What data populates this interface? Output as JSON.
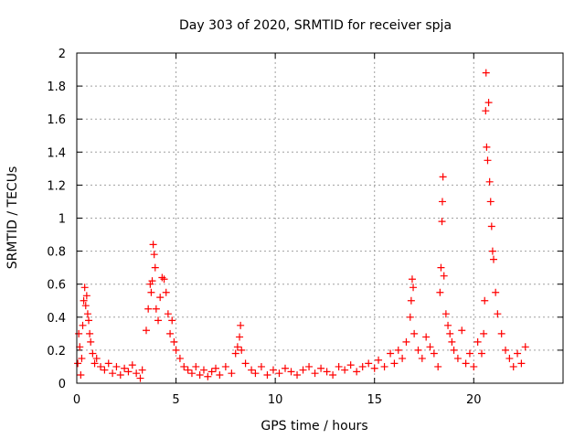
{
  "chart_data": {
    "type": "scatter",
    "title": "Day 303 of 2020, SRMTID for receiver spja",
    "xlabel": "GPS time / hours",
    "ylabel": "SRMTID / TECUs",
    "xlim": [
      0,
      24.5
    ],
    "ylim": [
      0,
      2
    ],
    "xticks": [
      0,
      5,
      10,
      15,
      20
    ],
    "xtick_labels": [
      "0",
      "5",
      "10",
      "15",
      "20"
    ],
    "yticks": [
      0,
      0.2,
      0.4,
      0.6,
      0.8,
      1,
      1.2,
      1.4,
      1.6,
      1.8,
      2
    ],
    "ytick_labels": [
      "0",
      "0.2",
      "0.4",
      "0.6",
      "0.8",
      "1",
      "1.2",
      "1.4",
      "1.6",
      "1.8",
      "2"
    ],
    "grid": true,
    "marker": "plus",
    "color": "#ff0000",
    "series": [
      {
        "name": "SRMTID",
        "points": [
          [
            0.05,
            0.12
          ],
          [
            0.1,
            0.3
          ],
          [
            0.15,
            0.22
          ],
          [
            0.2,
            0.05
          ],
          [
            0.25,
            0.15
          ],
          [
            0.3,
            0.35
          ],
          [
            0.35,
            0.5
          ],
          [
            0.4,
            0.58
          ],
          [
            0.45,
            0.47
          ],
          [
            0.5,
            0.53
          ],
          [
            0.55,
            0.42
          ],
          [
            0.6,
            0.38
          ],
          [
            0.65,
            0.3
          ],
          [
            0.7,
            0.25
          ],
          [
            0.8,
            0.18
          ],
          [
            0.9,
            0.12
          ],
          [
            1.0,
            0.15
          ],
          [
            1.2,
            0.1
          ],
          [
            1.4,
            0.08
          ],
          [
            1.6,
            0.12
          ],
          [
            1.8,
            0.06
          ],
          [
            2.0,
            0.1
          ],
          [
            2.2,
            0.05
          ],
          [
            2.4,
            0.09
          ],
          [
            2.6,
            0.07
          ],
          [
            2.8,
            0.11
          ],
          [
            3.0,
            0.06
          ],
          [
            3.2,
            0.03
          ],
          [
            3.3,
            0.08
          ],
          [
            3.5,
            0.32
          ],
          [
            3.6,
            0.45
          ],
          [
            3.7,
            0.6
          ],
          [
            3.75,
            0.55
          ],
          [
            3.8,
            0.62
          ],
          [
            3.85,
            0.84
          ],
          [
            3.9,
            0.78
          ],
          [
            3.95,
            0.7
          ],
          [
            4.0,
            0.45
          ],
          [
            4.1,
            0.38
          ],
          [
            4.2,
            0.52
          ],
          [
            4.3,
            0.64
          ],
          [
            4.4,
            0.63
          ],
          [
            4.5,
            0.55
          ],
          [
            4.6,
            0.42
          ],
          [
            4.7,
            0.3
          ],
          [
            4.8,
            0.38
          ],
          [
            4.9,
            0.25
          ],
          [
            5.0,
            0.2
          ],
          [
            5.2,
            0.15
          ],
          [
            5.4,
            0.1
          ],
          [
            5.6,
            0.08
          ],
          [
            5.8,
            0.06
          ],
          [
            6.0,
            0.1
          ],
          [
            6.2,
            0.05
          ],
          [
            6.4,
            0.08
          ],
          [
            6.6,
            0.04
          ],
          [
            6.8,
            0.07
          ],
          [
            7.0,
            0.09
          ],
          [
            7.2,
            0.05
          ],
          [
            7.5,
            0.1
          ],
          [
            7.8,
            0.06
          ],
          [
            8.0,
            0.18
          ],
          [
            8.1,
            0.22
          ],
          [
            8.2,
            0.28
          ],
          [
            8.25,
            0.35
          ],
          [
            8.3,
            0.2
          ],
          [
            8.5,
            0.12
          ],
          [
            8.8,
            0.08
          ],
          [
            9.0,
            0.06
          ],
          [
            9.3,
            0.1
          ],
          [
            9.6,
            0.05
          ],
          [
            9.9,
            0.08
          ],
          [
            10.2,
            0.06
          ],
          [
            10.5,
            0.09
          ],
          [
            10.8,
            0.07
          ],
          [
            11.1,
            0.05
          ],
          [
            11.4,
            0.08
          ],
          [
            11.7,
            0.1
          ],
          [
            12.0,
            0.06
          ],
          [
            12.3,
            0.09
          ],
          [
            12.6,
            0.07
          ],
          [
            12.9,
            0.05
          ],
          [
            13.2,
            0.1
          ],
          [
            13.5,
            0.08
          ],
          [
            13.8,
            0.11
          ],
          [
            14.1,
            0.07
          ],
          [
            14.4,
            0.1
          ],
          [
            14.7,
            0.12
          ],
          [
            15.0,
            0.09
          ],
          [
            15.2,
            0.14
          ],
          [
            15.5,
            0.1
          ],
          [
            15.8,
            0.18
          ],
          [
            16.0,
            0.12
          ],
          [
            16.2,
            0.2
          ],
          [
            16.4,
            0.15
          ],
          [
            16.6,
            0.25
          ],
          [
            16.8,
            0.4
          ],
          [
            16.85,
            0.5
          ],
          [
            16.9,
            0.63
          ],
          [
            16.95,
            0.58
          ],
          [
            17.0,
            0.3
          ],
          [
            17.2,
            0.2
          ],
          [
            17.4,
            0.15
          ],
          [
            17.6,
            0.28
          ],
          [
            17.8,
            0.22
          ],
          [
            18.0,
            0.18
          ],
          [
            18.2,
            0.1
          ],
          [
            18.3,
            0.55
          ],
          [
            18.35,
            0.7
          ],
          [
            18.4,
            0.98
          ],
          [
            18.42,
            1.1
          ],
          [
            18.45,
            1.25
          ],
          [
            18.5,
            0.65
          ],
          [
            18.6,
            0.42
          ],
          [
            18.7,
            0.35
          ],
          [
            18.8,
            0.3
          ],
          [
            18.9,
            0.25
          ],
          [
            19.0,
            0.2
          ],
          [
            19.2,
            0.15
          ],
          [
            19.4,
            0.32
          ],
          [
            19.6,
            0.12
          ],
          [
            19.8,
            0.18
          ],
          [
            20.0,
            0.1
          ],
          [
            20.2,
            0.25
          ],
          [
            20.4,
            0.18
          ],
          [
            20.5,
            0.3
          ],
          [
            20.55,
            0.5
          ],
          [
            20.6,
            1.65
          ],
          [
            20.62,
            1.88
          ],
          [
            20.65,
            1.43
          ],
          [
            20.7,
            1.35
          ],
          [
            20.75,
            1.7
          ],
          [
            20.8,
            1.22
          ],
          [
            20.85,
            1.1
          ],
          [
            20.9,
            0.95
          ],
          [
            20.95,
            0.8
          ],
          [
            21.0,
            0.75
          ],
          [
            21.1,
            0.55
          ],
          [
            21.2,
            0.42
          ],
          [
            21.4,
            0.3
          ],
          [
            21.6,
            0.2
          ],
          [
            21.8,
            0.15
          ],
          [
            22.0,
            0.1
          ],
          [
            22.2,
            0.18
          ],
          [
            22.4,
            0.12
          ],
          [
            22.6,
            0.22
          ]
        ]
      }
    ]
  }
}
